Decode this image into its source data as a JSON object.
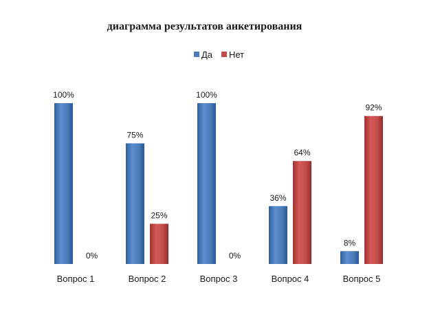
{
  "chart_data": {
    "type": "bar",
    "title": "диаграмма результатов анкетирования",
    "xlabel": "",
    "ylabel": "",
    "ylim": [
      0,
      100
    ],
    "grid": false,
    "legend_position": "top",
    "categories": [
      "Вопрос 1",
      "Вопрос 2",
      "Вопрос 3",
      "Вопрос 4",
      "Вопрос 5"
    ],
    "series": [
      {
        "name": "Да",
        "values": [
          100,
          75,
          100,
          36,
          8
        ],
        "labels": [
          "100%",
          "75%",
          "100%",
          "36%",
          "8%"
        ],
        "color": "#4a7ebb"
      },
      {
        "name": "Нет",
        "values": [
          0,
          25,
          0,
          64,
          92
        ],
        "labels": [
          "0%",
          "25%",
          "0%",
          "64%",
          "92%"
        ],
        "color": "#be4b48"
      }
    ]
  }
}
